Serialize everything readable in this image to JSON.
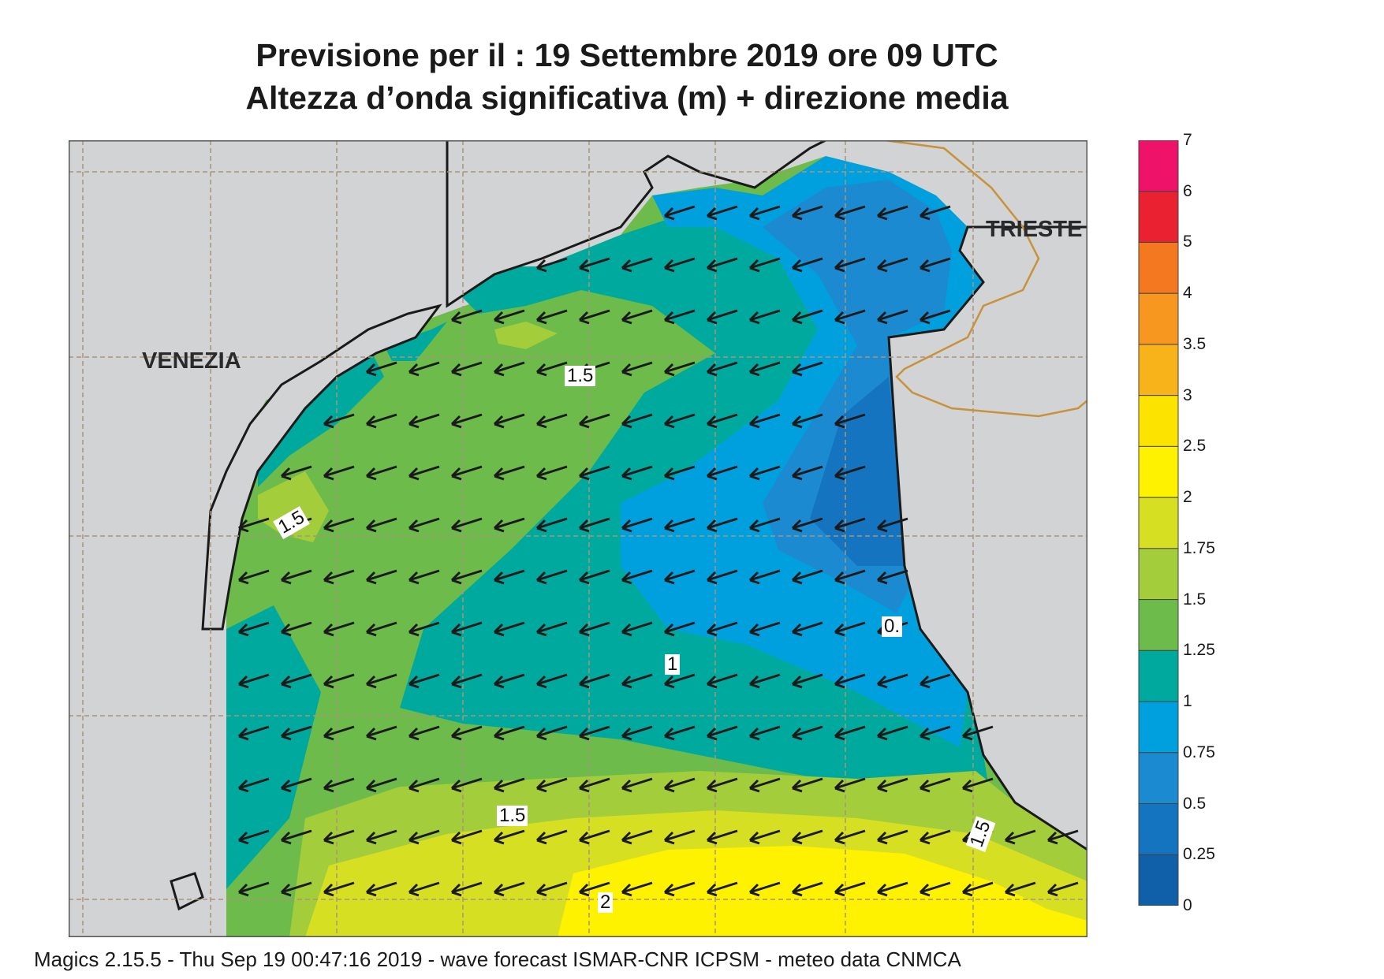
{
  "title_line1": "Previsione per il  :  19 Settembre 2019   ore 09 UTC",
  "title_line2": "Altezza d’onda significativa (m) + direzione media",
  "footer": "Magics 2.15.5 - Thu Sep 19 00:47:16 2019 - wave forecast  ISMAR-CNR  ICPSM - meteo data   CNMCA",
  "cities": {
    "venezia": "VENEZIA",
    "trieste": "TRIESTE"
  },
  "contour_labels": [
    "1.5",
    "1.5",
    "1",
    "0.",
    "1.5",
    "1.5",
    "2"
  ],
  "legend": {
    "ticks": [
      "7",
      "6",
      "5",
      "4",
      "3.5",
      "3",
      "2.5",
      "2",
      "1.75",
      "1.5",
      "1.25",
      "1",
      "0.75",
      "0.5",
      "0.25",
      "0"
    ],
    "colors": [
      "#ee1369",
      "#ea2130",
      "#f4781f",
      "#f79720",
      "#f8b21a",
      "#fde300",
      "#fff200",
      "#d7df23",
      "#a4cd3b",
      "#6cbb4b",
      "#00a99d",
      "#00a0df",
      "#1b8ad1",
      "#1574c0",
      "#0f5fa9"
    ]
  },
  "colors": {
    "land": "#d1d3d4",
    "grid": "#a8957a",
    "border": "#c8923a",
    "arrow": "#1a1a1a"
  }
}
